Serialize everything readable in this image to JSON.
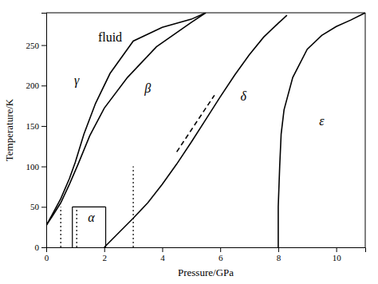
{
  "chart_data": {
    "type": "line",
    "title": "",
    "xlabel": "Pressure/GPa",
    "ylabel": "Temperature/K",
    "xlim": [
      0,
      11
    ],
    "ylim": [
      0,
      290
    ],
    "xticks": [
      0,
      2,
      4,
      6,
      8,
      10
    ],
    "yticks": [
      0,
      50,
      100,
      150,
      200,
      250
    ],
    "color": "#000000",
    "series": [
      {
        "x": [
          0.0,
          0.2,
          0.5,
          0.8,
          1.0,
          1.3,
          1.7,
          2.2,
          3.0,
          4.0,
          5.0,
          5.5
        ],
        "values": [
          27,
          40,
          60,
          85,
          105,
          140,
          178,
          215,
          255,
          272,
          282,
          290
        ],
        "line_style": "solid"
      },
      {
        "x": [
          0.0,
          0.2,
          0.5,
          0.8,
          1.1,
          1.5,
          2.0,
          2.8,
          3.8,
          5.0,
          5.5
        ],
        "values": [
          27,
          38,
          55,
          78,
          103,
          138,
          172,
          210,
          248,
          278,
          290
        ],
        "line_style": "solid"
      },
      {
        "x": [
          2.0,
          2.5,
          3.0,
          3.5,
          4.0,
          4.5,
          5.0,
          5.5,
          6.0,
          6.5,
          7.0,
          7.5,
          8.0,
          8.3
        ],
        "values": [
          0,
          18,
          36,
          55,
          78,
          103,
          130,
          158,
          186,
          213,
          238,
          260,
          277,
          287
        ],
        "line_style": "solid"
      },
      {
        "x": [
          8.0,
          8.0,
          8.05,
          8.1,
          8.2,
          8.5,
          9.0,
          9.5,
          10.0,
          10.5,
          11.0
        ],
        "values": [
          0,
          50,
          100,
          140,
          170,
          210,
          245,
          262,
          273,
          281,
          290
        ],
        "line_style": "solid"
      },
      {
        "x": [
          4.5,
          5.0,
          5.5,
          5.8
        ],
        "values": [
          118,
          145,
          172,
          188
        ],
        "line_style": "dashed"
      },
      {
        "x": [
          0.9,
          2.05
        ],
        "values": [
          50,
          50
        ],
        "line_style": "solid"
      },
      {
        "x": [
          0.9,
          0.9
        ],
        "values": [
          0,
          50
        ],
        "line_style": "solid"
      },
      {
        "x": [
          2.05,
          2.05
        ],
        "values": [
          0,
          50
        ],
        "line_style": "solid"
      },
      {
        "x": [
          0.5,
          0.5
        ],
        "values": [
          0,
          50
        ],
        "line_style": "dotted"
      },
      {
        "x": [
          1.05,
          1.05
        ],
        "values": [
          0,
          50
        ],
        "line_style": "dotted"
      },
      {
        "x": [
          3.0,
          3.0
        ],
        "values": [
          0,
          100
        ],
        "line_style": "dotted"
      }
    ],
    "annotations": [
      {
        "text": "fluid",
        "x": 2.2,
        "y": 258
      },
      {
        "text": "γ",
        "x": 1.05,
        "y": 205
      },
      {
        "text": "β",
        "x": 3.5,
        "y": 195
      },
      {
        "text": "δ",
        "x": 6.8,
        "y": 185
      },
      {
        "text": "ε",
        "x": 9.5,
        "y": 155
      },
      {
        "text": "α",
        "x": 1.55,
        "y": 35
      }
    ]
  }
}
